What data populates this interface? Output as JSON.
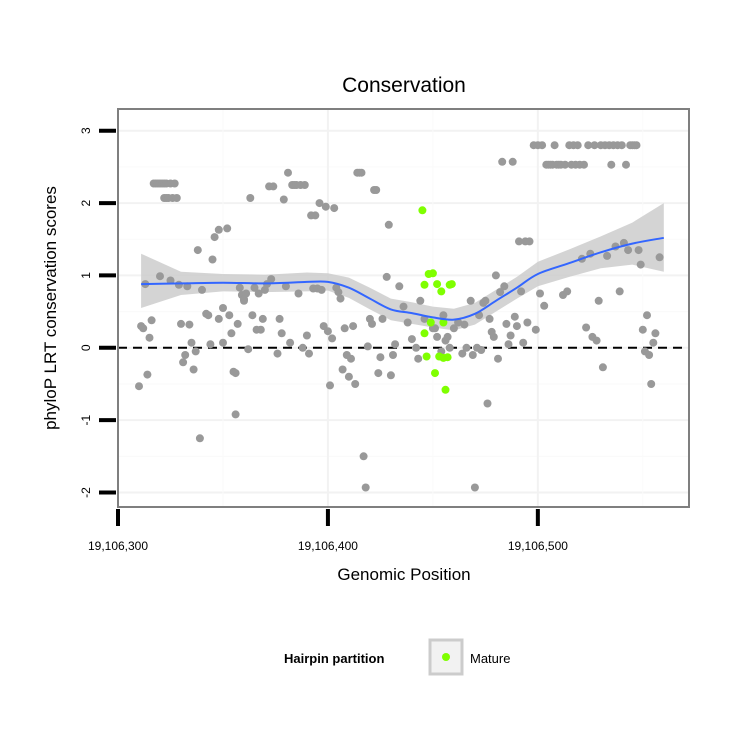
{
  "chart_data": {
    "type": "scatter",
    "title": "Conservation",
    "xlabel": "Genomic Position",
    "ylabel": "phyloP LRT conservation scores",
    "xlim": [
      19106300,
      19106572
    ],
    "ylim": [
      -2.2,
      3.3
    ],
    "x_ticks": [
      19106300,
      19106400,
      19106500
    ],
    "x_tick_labels": [
      "19,106,300",
      "19,106,400",
      "19,106,500"
    ],
    "y_ticks": [
      -2,
      -1,
      0,
      1,
      2,
      3
    ],
    "y_tick_labels": [
      "-2",
      "-1",
      "0",
      "1",
      "2",
      "3"
    ],
    "grid": true,
    "reference_line": {
      "y": 0,
      "style": "dashed",
      "color": "#000000"
    },
    "colors": {
      "other": "#999999",
      "mature": "#7fff00",
      "smooth": "#3366ff",
      "ribbon": "#cccccc",
      "panel_border": "#7f7f7f"
    },
    "series": [
      {
        "name": "",
        "color": "#999999",
        "points": [
          [
            19106310,
            -0.53
          ],
          [
            19106311,
            0.3
          ],
          [
            19106312,
            0.27
          ],
          [
            19106313,
            0.88
          ],
          [
            19106314,
            -0.37
          ],
          [
            19106315,
            0.14
          ],
          [
            19106316,
            0.38
          ],
          [
            19106317,
            2.27
          ],
          [
            19106318,
            2.27
          ],
          [
            19106319,
            2.27
          ],
          [
            19106320,
            2.27
          ],
          [
            19106320,
            0.99
          ],
          [
            19106321,
            2.27
          ],
          [
            19106322,
            2.27
          ],
          [
            19106322,
            2.07
          ],
          [
            19106323,
            2.27
          ],
          [
            19106323,
            2.07
          ],
          [
            19106324,
            2.07
          ],
          [
            19106325,
            2.27
          ],
          [
            19106325,
            0.93
          ],
          [
            19106326,
            2.07
          ],
          [
            19106327,
            2.27
          ],
          [
            19106328,
            2.07
          ],
          [
            19106329,
            0.87
          ],
          [
            19106330,
            0.33
          ],
          [
            19106331,
            -0.2
          ],
          [
            19106332,
            -0.1
          ],
          [
            19106333,
            0.85
          ],
          [
            19106334,
            0.32
          ],
          [
            19106335,
            0.07
          ],
          [
            19106336,
            -0.3
          ],
          [
            19106337,
            -0.05
          ],
          [
            19106338,
            1.35
          ],
          [
            19106339,
            -1.25
          ],
          [
            19106340,
            0.8
          ],
          [
            19106342,
            0.47
          ],
          [
            19106343,
            0.45
          ],
          [
            19106344,
            0.05
          ],
          [
            19106345,
            1.22
          ],
          [
            19106346,
            1.53
          ],
          [
            19106348,
            0.4
          ],
          [
            19106348,
            1.63
          ],
          [
            19106350,
            0.55
          ],
          [
            19106350,
            0.07
          ],
          [
            19106352,
            1.65
          ],
          [
            19106353,
            0.45
          ],
          [
            19106354,
            0.2
          ],
          [
            19106355,
            -0.33
          ],
          [
            19106356,
            -0.35
          ],
          [
            19106356,
            -0.92
          ],
          [
            19106357,
            0.33
          ],
          [
            19106358,
            0.83
          ],
          [
            19106359,
            0.73
          ],
          [
            19106360,
            0.67
          ],
          [
            19106360,
            0.65
          ],
          [
            19106361,
            0.75
          ],
          [
            19106362,
            -0.02
          ],
          [
            19106363,
            2.07
          ],
          [
            19106364,
            0.45
          ],
          [
            19106365,
            0.83
          ],
          [
            19106366,
            0.25
          ],
          [
            19106367,
            0.75
          ],
          [
            19106368,
            0.25
          ],
          [
            19106369,
            0.4
          ],
          [
            19106370,
            0.8
          ],
          [
            19106371,
            0.88
          ],
          [
            19106372,
            2.23
          ],
          [
            19106373,
            0.95
          ],
          [
            19106374,
            2.23
          ],
          [
            19106376,
            -0.08
          ],
          [
            19106377,
            0.4
          ],
          [
            19106378,
            0.2
          ],
          [
            19106379,
            2.05
          ],
          [
            19106380,
            0.85
          ],
          [
            19106381,
            2.42
          ],
          [
            19106382,
            0.07
          ],
          [
            19106383,
            2.25
          ],
          [
            19106384,
            2.25
          ],
          [
            19106385,
            2.25
          ],
          [
            19106386,
            0.75
          ],
          [
            19106387,
            2.25
          ],
          [
            19106388,
            0.0
          ],
          [
            19106389,
            2.25
          ],
          [
            19106390,
            0.17
          ],
          [
            19106391,
            -0.08
          ],
          [
            19106392,
            1.83
          ],
          [
            19106393,
            0.82
          ],
          [
            19106394,
            1.83
          ],
          [
            19106395,
            0.82
          ],
          [
            19106396,
            2.0
          ],
          [
            19106397,
            0.8
          ],
          [
            19106398,
            0.3
          ],
          [
            19106399,
            1.95
          ],
          [
            19106400,
            0.23
          ],
          [
            19106401,
            -0.52
          ],
          [
            19106402,
            0.13
          ],
          [
            19106403,
            1.93
          ],
          [
            19106404,
            0.83
          ],
          [
            19106405,
            0.77
          ],
          [
            19106406,
            0.68
          ],
          [
            19106407,
            -0.3
          ],
          [
            19106408,
            0.27
          ],
          [
            19106409,
            -0.1
          ],
          [
            19106410,
            -0.4
          ],
          [
            19106411,
            -0.15
          ],
          [
            19106412,
            0.3
          ],
          [
            19106413,
            -0.5
          ],
          [
            19106414,
            2.42
          ],
          [
            19106415,
            2.42
          ],
          [
            19106416,
            2.42
          ],
          [
            19106417,
            -1.5
          ],
          [
            19106418,
            -1.93
          ],
          [
            19106419,
            0.02
          ],
          [
            19106420,
            0.4
          ],
          [
            19106421,
            0.33
          ],
          [
            19106422,
            2.18
          ],
          [
            19106423,
            2.18
          ],
          [
            19106424,
            -0.35
          ],
          [
            19106425,
            -0.13
          ],
          [
            19106426,
            0.4
          ],
          [
            19106428,
            0.98
          ],
          [
            19106429,
            1.7
          ],
          [
            19106430,
            -0.38
          ],
          [
            19106431,
            -0.1
          ],
          [
            19106432,
            0.05
          ],
          [
            19106434,
            0.85
          ],
          [
            19106436,
            0.57
          ],
          [
            19106438,
            0.35
          ],
          [
            19106440,
            0.12
          ],
          [
            19106442,
            0.0
          ],
          [
            19106443,
            -0.15
          ],
          [
            19106444,
            0.65
          ],
          [
            19106446,
            0.4
          ],
          [
            19106450,
            0.27
          ],
          [
            19106451,
            0.27
          ],
          [
            19106452,
            0.15
          ],
          [
            19106454,
            -0.05
          ],
          [
            19106455,
            0.45
          ],
          [
            19106456,
            0.1
          ],
          [
            19106457,
            0.15
          ],
          [
            19106458,
            0.0
          ],
          [
            19106460,
            0.27
          ],
          [
            19106462,
            0.35
          ],
          [
            19106464,
            -0.08
          ],
          [
            19106465,
            0.32
          ],
          [
            19106466,
            0.0
          ],
          [
            19106468,
            0.65
          ],
          [
            19106469,
            -0.1
          ],
          [
            19106470,
            -1.93
          ],
          [
            19106471,
            0.0
          ],
          [
            19106472,
            0.45
          ],
          [
            19106473,
            -0.03
          ],
          [
            19106474,
            0.62
          ],
          [
            19106475,
            0.65
          ],
          [
            19106476,
            -0.77
          ],
          [
            19106477,
            0.4
          ],
          [
            19106478,
            0.22
          ],
          [
            19106479,
            0.15
          ],
          [
            19106480,
            1.0
          ],
          [
            19106481,
            -0.15
          ],
          [
            19106482,
            0.77
          ],
          [
            19106483,
            2.57
          ],
          [
            19106484,
            0.85
          ],
          [
            19106485,
            0.33
          ],
          [
            19106486,
            0.05
          ],
          [
            19106487,
            0.17
          ],
          [
            19106488,
            2.57
          ],
          [
            19106489,
            0.43
          ],
          [
            19106490,
            0.3
          ],
          [
            19106491,
            1.47
          ],
          [
            19106492,
            0.78
          ],
          [
            19106493,
            0.07
          ],
          [
            19106494,
            1.47
          ],
          [
            19106495,
            0.35
          ],
          [
            19106496,
            1.47
          ],
          [
            19106498,
            2.8
          ],
          [
            19106499,
            0.25
          ],
          [
            19106500,
            2.8
          ],
          [
            19106501,
            0.75
          ],
          [
            19106502,
            2.8
          ],
          [
            19106503,
            0.58
          ],
          [
            19106504,
            2.53
          ],
          [
            19106505,
            2.53
          ],
          [
            19106506,
            2.53
          ],
          [
            19106507,
            2.53
          ],
          [
            19106508,
            2.8
          ],
          [
            19106509,
            2.53
          ],
          [
            19106510,
            2.53
          ],
          [
            19106511,
            2.53
          ],
          [
            19106512,
            0.73
          ],
          [
            19106513,
            2.53
          ],
          [
            19106514,
            0.78
          ],
          [
            19106515,
            2.8
          ],
          [
            19106516,
            2.53
          ],
          [
            19106517,
            2.8
          ],
          [
            19106518,
            2.53
          ],
          [
            19106519,
            2.8
          ],
          [
            19106520,
            2.53
          ],
          [
            19106521,
            1.23
          ],
          [
            19106522,
            2.53
          ],
          [
            19106523,
            0.28
          ],
          [
            19106524,
            2.8
          ],
          [
            19106525,
            1.3
          ],
          [
            19106526,
            0.15
          ],
          [
            19106527,
            2.8
          ],
          [
            19106528,
            0.1
          ],
          [
            19106529,
            0.65
          ],
          [
            19106530,
            2.8
          ],
          [
            19106531,
            -0.27
          ],
          [
            19106532,
            2.8
          ],
          [
            19106533,
            1.27
          ],
          [
            19106534,
            2.8
          ],
          [
            19106535,
            2.53
          ],
          [
            19106536,
            2.8
          ],
          [
            19106537,
            1.4
          ],
          [
            19106538,
            2.8
          ],
          [
            19106539,
            0.78
          ],
          [
            19106540,
            2.8
          ],
          [
            19106541,
            1.45
          ],
          [
            19106542,
            2.53
          ],
          [
            19106543,
            1.35
          ],
          [
            19106544,
            2.8
          ],
          [
            19106545,
            2.8
          ],
          [
            19106546,
            2.8
          ],
          [
            19106547,
            2.8
          ],
          [
            19106548,
            1.35
          ],
          [
            19106549,
            1.15
          ],
          [
            19106550,
            0.25
          ],
          [
            19106551,
            -0.05
          ],
          [
            19106552,
            0.45
          ],
          [
            19106553,
            -0.1
          ],
          [
            19106554,
            -0.5
          ],
          [
            19106555,
            0.07
          ],
          [
            19106556,
            0.2
          ],
          [
            19106558,
            1.25
          ]
        ]
      },
      {
        "name": "Mature",
        "color": "#7fff00",
        "points": [
          [
            19106445,
            1.9
          ],
          [
            19106446,
            0.87
          ],
          [
            19106447,
            -0.12
          ],
          [
            19106448,
            1.02
          ],
          [
            19106449,
            0.35
          ],
          [
            19106450,
            1.03
          ],
          [
            19106451,
            -0.35
          ],
          [
            19106452,
            0.88
          ],
          [
            19106453,
            -0.12
          ],
          [
            19106454,
            0.78
          ],
          [
            19106455,
            -0.14
          ],
          [
            19106456,
            -0.58
          ],
          [
            19106457,
            -0.13
          ],
          [
            19106458,
            0.87
          ],
          [
            19106459,
            0.88
          ],
          [
            19106446,
            0.2
          ],
          [
            19106455,
            0.35
          ]
        ]
      }
    ],
    "smooth": {
      "color": "#3366ff",
      "x": [
        19106311,
        19106330,
        19106350,
        19106370,
        19106390,
        19106400,
        19106410,
        19106420,
        19106430,
        19106440,
        19106450,
        19106460,
        19106470,
        19106480,
        19106490,
        19106500,
        19106515,
        19106530,
        19106545,
        19106560
      ],
      "y": [
        0.88,
        0.89,
        0.9,
        0.89,
        0.91,
        0.91,
        0.83,
        0.68,
        0.53,
        0.48,
        0.42,
        0.39,
        0.47,
        0.65,
        0.83,
        1.02,
        1.17,
        1.32,
        1.44,
        1.52
      ],
      "lower": [
        0.55,
        0.73,
        0.78,
        0.77,
        0.78,
        0.79,
        0.69,
        0.53,
        0.38,
        0.33,
        0.28,
        0.24,
        0.32,
        0.5,
        0.68,
        0.85,
        0.98,
        1.1,
        1.15,
        1.05
      ],
      "upper": [
        1.3,
        1.05,
        1.02,
        1.01,
        1.04,
        1.03,
        0.97,
        0.83,
        0.68,
        0.63,
        0.57,
        0.54,
        0.62,
        0.8,
        0.98,
        1.19,
        1.36,
        1.54,
        1.73,
        2.0
      ]
    },
    "legend": {
      "title": "Hairpin partition",
      "entries": [
        "Mature"
      ],
      "placement": "bottom"
    }
  }
}
